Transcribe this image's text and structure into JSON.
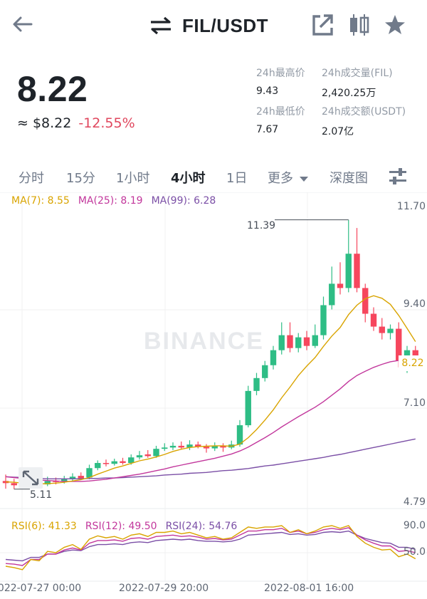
{
  "header": {
    "title": "FIL/USDT",
    "back_icon": "arrow-left-icon",
    "swap_icon": "swap-arrows-icon",
    "share_icon": "external-link-icon",
    "candle_icon": "candlestick-icon",
    "star_icon": "star-icon"
  },
  "ticker": {
    "price": "8.22",
    "fiat": "≈ $8.22",
    "change": "-12.55%",
    "stats": [
      {
        "label": "24h最高价",
        "value": "9.43"
      },
      {
        "label": "24h成交量(FIL)",
        "value": "2,420.25万"
      },
      {
        "label": "24h最低价",
        "value": "7.67"
      },
      {
        "label": "24h成交额(USDT)",
        "value": "2.07亿"
      }
    ]
  },
  "tabs": [
    "分时",
    "15分",
    "1小时",
    "4小时",
    "1日",
    "更多",
    "深度图"
  ],
  "active_tab": "4小时",
  "colors": {
    "up": "#2ebd85",
    "down": "#f6465d",
    "ma7": "#d9a400",
    "ma25": "#c2379c",
    "ma99": "#7b4fa6"
  },
  "chart_data": {
    "type": "candlestick",
    "indicators": {
      "ma": [
        {
          "label": "MA(7): 8.55",
          "color": "#d9a400"
        },
        {
          "label": "MA(25): 8.19",
          "color": "#c2379c"
        },
        {
          "label": "MA(99): 6.28",
          "color": "#7b4fa6"
        }
      ],
      "rsi": [
        {
          "label": "RSI(6): 41.33",
          "color": "#d9a400"
        },
        {
          "label": "RSI(12): 49.50",
          "color": "#c2379c"
        },
        {
          "label": "RSI(24): 54.76",
          "color": "#7b4fa6"
        }
      ]
    },
    "y_ticks": [
      "11.70",
      "9.40",
      "7.10",
      "4.79"
    ],
    "rsi_ticks": [
      "90.0",
      "50.0"
    ],
    "x_ticks": [
      "2022-07-27 00:00",
      "2022-07-29 20:00",
      "2022-08-01 16:00"
    ],
    "ylim": [
      4.79,
      11.7
    ],
    "high_marker": "11.39",
    "low_marker": "5.11",
    "current": "8.22",
    "watermark": "BINANCE",
    "candles": [
      [
        5.3,
        5.25,
        5.45,
        5.12
      ],
      [
        5.25,
        5.2,
        5.35,
        5.11
      ],
      [
        5.22,
        5.18,
        5.3,
        5.15
      ],
      [
        5.2,
        5.24,
        5.32,
        5.14
      ],
      [
        5.25,
        5.2,
        5.32,
        5.16
      ],
      [
        5.22,
        5.3,
        5.4,
        5.18
      ],
      [
        5.3,
        5.28,
        5.38,
        5.22
      ],
      [
        5.28,
        5.35,
        5.42,
        5.24
      ],
      [
        5.35,
        5.4,
        5.48,
        5.3
      ],
      [
        5.42,
        5.36,
        5.5,
        5.32
      ],
      [
        5.38,
        5.6,
        5.68,
        5.34
      ],
      [
        5.6,
        5.72,
        5.78,
        5.55
      ],
      [
        5.72,
        5.7,
        5.8,
        5.64
      ],
      [
        5.7,
        5.76,
        5.82,
        5.66
      ],
      [
        5.76,
        5.72,
        5.84,
        5.68
      ],
      [
        5.72,
        5.85,
        5.92,
        5.68
      ],
      [
        5.85,
        5.9,
        6.0,
        5.8
      ],
      [
        5.92,
        5.88,
        6.02,
        5.84
      ],
      [
        5.88,
        6.05,
        6.12,
        5.84
      ],
      [
        6.05,
        6.08,
        6.18,
        6.0
      ],
      [
        6.08,
        6.12,
        6.2,
        6.02
      ],
      [
        6.12,
        6.08,
        6.22,
        6.04
      ],
      [
        6.08,
        6.15,
        6.25,
        6.02
      ],
      [
        6.15,
        6.1,
        6.22,
        6.06
      ],
      [
        6.1,
        6.06,
        6.16,
        5.96
      ],
      [
        6.06,
        6.12,
        6.2,
        6.0
      ],
      [
        6.12,
        6.08,
        6.18,
        5.98
      ],
      [
        6.08,
        6.15,
        6.24,
        6.04
      ],
      [
        6.15,
        6.6,
        6.72,
        6.1
      ],
      [
        6.6,
        7.4,
        7.52,
        6.55
      ],
      [
        7.4,
        7.7,
        7.82,
        7.3
      ],
      [
        7.7,
        8.0,
        8.1,
        7.62
      ],
      [
        8.0,
        8.35,
        8.45,
        7.9
      ],
      [
        8.35,
        8.7,
        9.0,
        8.25
      ],
      [
        8.7,
        8.4,
        9.0,
        8.3
      ],
      [
        8.4,
        8.65,
        8.75,
        8.3
      ],
      [
        8.65,
        8.45,
        8.8,
        8.35
      ],
      [
        8.45,
        8.7,
        8.95,
        8.4
      ],
      [
        8.7,
        9.4,
        9.6,
        8.6
      ],
      [
        9.4,
        9.9,
        10.3,
        9.3
      ],
      [
        9.9,
        9.8,
        10.4,
        9.65
      ],
      [
        9.8,
        10.6,
        11.39,
        9.7
      ],
      [
        10.6,
        9.8,
        11.2,
        9.7
      ],
      [
        9.8,
        9.2,
        9.9,
        9.0
      ],
      [
        9.2,
        8.9,
        9.35,
        8.8
      ],
      [
        8.9,
        8.75,
        9.1,
        8.6
      ],
      [
        8.75,
        8.85,
        8.95,
        8.6
      ],
      [
        8.85,
        8.1,
        9.0,
        7.95
      ],
      [
        8.1,
        8.35,
        8.45,
        7.82
      ],
      [
        8.35,
        8.22,
        8.45,
        7.92
      ]
    ],
    "ma7": [
      5.28,
      5.27,
      5.25,
      5.24,
      5.23,
      5.24,
      5.25,
      5.27,
      5.3,
      5.33,
      5.38,
      5.46,
      5.53,
      5.6,
      5.65,
      5.71,
      5.77,
      5.81,
      5.86,
      5.92,
      5.99,
      6.04,
      6.08,
      6.1,
      6.11,
      6.12,
      6.12,
      6.11,
      6.16,
      6.31,
      6.5,
      6.72,
      6.96,
      7.24,
      7.49,
      7.76,
      7.98,
      8.18,
      8.44,
      8.68,
      8.88,
      9.18,
      9.4,
      9.55,
      9.62,
      9.56,
      9.42,
      9.16,
      8.86,
      8.55
    ],
    "ma25": [
      5.4,
      5.38,
      5.36,
      5.34,
      5.32,
      5.31,
      5.3,
      5.29,
      5.29,
      5.29,
      5.3,
      5.32,
      5.34,
      5.37,
      5.4,
      5.43,
      5.46,
      5.5,
      5.54,
      5.58,
      5.63,
      5.67,
      5.71,
      5.75,
      5.79,
      5.83,
      5.88,
      5.93,
      6.0,
      6.09,
      6.2,
      6.31,
      6.43,
      6.56,
      6.68,
      6.8,
      6.91,
      7.02,
      7.15,
      7.3,
      7.45,
      7.62,
      7.76,
      7.86,
      7.95,
      8.02,
      8.08,
      8.11,
      8.15,
      8.19
    ],
    "ma99": [
      5.4,
      5.39,
      5.38,
      5.37,
      5.36,
      5.35,
      5.35,
      5.35,
      5.35,
      5.35,
      5.36,
      5.36,
      5.37,
      5.37,
      5.38,
      5.39,
      5.4,
      5.41,
      5.42,
      5.44,
      5.45,
      5.46,
      5.48,
      5.49,
      5.5,
      5.52,
      5.54,
      5.55,
      5.57,
      5.59,
      5.62,
      5.65,
      5.67,
      5.7,
      5.73,
      5.76,
      5.79,
      5.82,
      5.85,
      5.89,
      5.92,
      5.96,
      6.0,
      6.04,
      6.08,
      6.12,
      6.16,
      6.2,
      6.24,
      6.28
    ],
    "rsi6": [
      30,
      28,
      25,
      40,
      38,
      52,
      50,
      58,
      62,
      55,
      70,
      75,
      72,
      74,
      70,
      76,
      78,
      74,
      80,
      80,
      82,
      78,
      80,
      76,
      72,
      74,
      70,
      72,
      80,
      88,
      86,
      88,
      88,
      90,
      80,
      84,
      78,
      82,
      88,
      90,
      86,
      90,
      74,
      64,
      58,
      54,
      55,
      44,
      48,
      41
    ],
    "rsi12": [
      34,
      33,
      31,
      40,
      40,
      48,
      48,
      54,
      57,
      54,
      64,
      68,
      68,
      69,
      67,
      71,
      72,
      70,
      74,
      75,
      76,
      74,
      75,
      73,
      70,
      71,
      69,
      70,
      76,
      82,
      82,
      84,
      84,
      86,
      80,
      82,
      78,
      80,
      84,
      86,
      84,
      87,
      76,
      69,
      64,
      60,
      60,
      52,
      53,
      50
    ],
    "rsi24": [
      40,
      39,
      38,
      43,
      43,
      48,
      48,
      52,
      54,
      53,
      59,
      62,
      62,
      63,
      62,
      65,
      66,
      65,
      68,
      69,
      70,
      69,
      70,
      68,
      67,
      67,
      66,
      67,
      70,
      76,
      77,
      78,
      79,
      80,
      77,
      78,
      76,
      77,
      80,
      81,
      80,
      82,
      76,
      71,
      68,
      65,
      64,
      58,
      58,
      55
    ]
  }
}
